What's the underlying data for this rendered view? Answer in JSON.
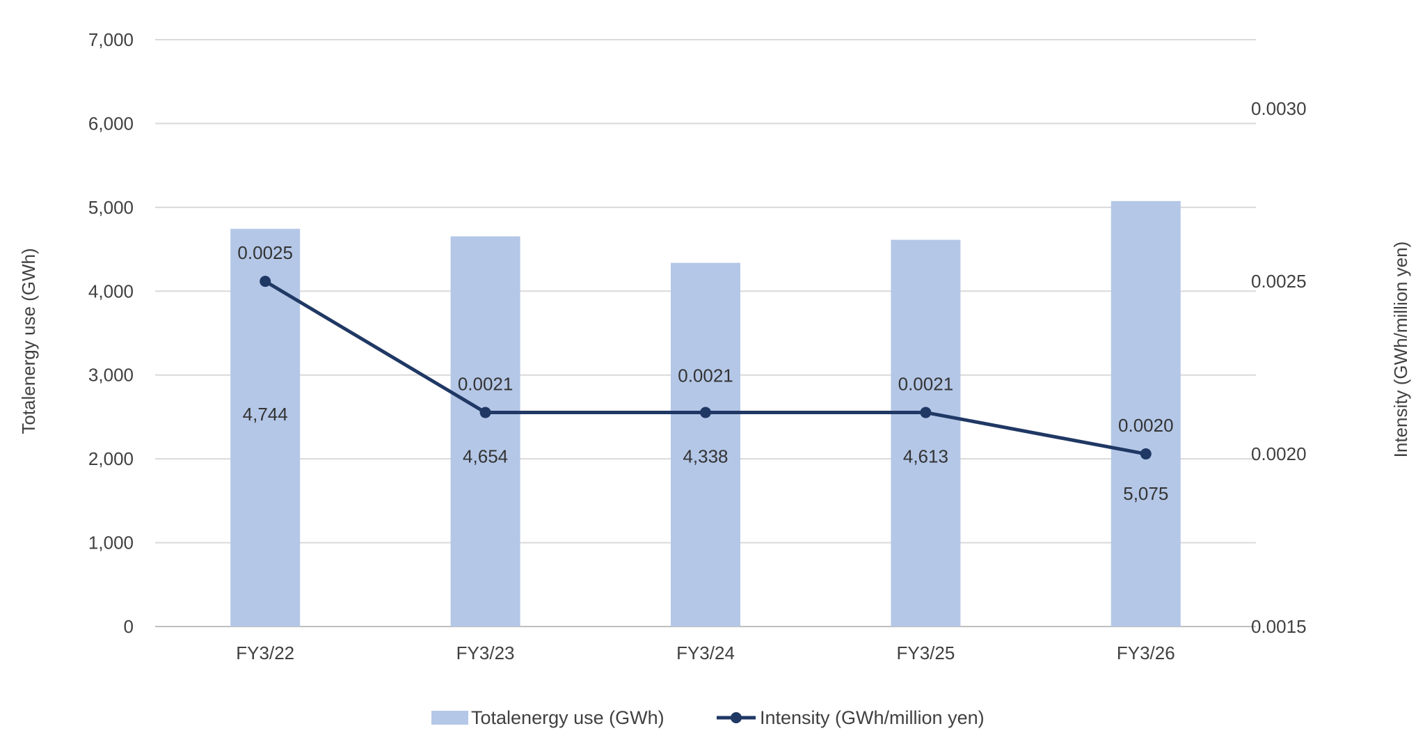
{
  "chart_data": {
    "type": "bar",
    "categories": [
      "FY3/22",
      "FY3/23",
      "FY3/24",
      "FY3/25",
      "FY3/26"
    ],
    "series": [
      {
        "name": "Totalenergy use (GWh)",
        "kind": "bar",
        "axis": "left",
        "values": [
          4744,
          4654,
          4338,
          4613,
          5075
        ],
        "labels": [
          "4,744",
          "4,654",
          "4,338",
          "4,613",
          "5,075"
        ],
        "color": "#B4C7E7"
      },
      {
        "name": "Intensity (GWh/million yen)",
        "kind": "line",
        "axis": "right",
        "values": [
          0.0025,
          0.00212,
          0.00212,
          0.00212,
          0.002
        ],
        "labels": [
          "0.0025",
          "0.0021",
          "0.0021",
          "0.0021",
          "0.0020"
        ],
        "color": "#203864"
      }
    ],
    "ylabel": "Totalenergy use (GWh)",
    "ylim": [
      0,
      7000
    ],
    "yticks": [
      "0",
      "1,000",
      "2,000",
      "3,000",
      "4,000",
      "5,000",
      "6,000",
      "7,000"
    ],
    "y2label": "Intensity (GWh/million yen)",
    "y2lim": [
      0.0015,
      0.0032
    ],
    "y2ticks": [
      "0.0015",
      "0.0020",
      "0.0025",
      "0.0030"
    ],
    "grid": true,
    "legend": "bottom"
  }
}
